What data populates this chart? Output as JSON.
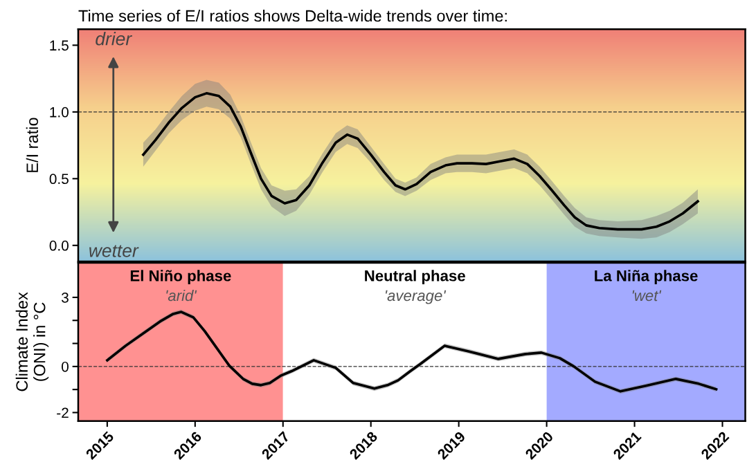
{
  "chart_data": [
    {
      "type": "line",
      "title": "Time series of E/I ratios shows Delta-wide trends over time:",
      "ylabel": "E/I ratio",
      "annotations": [
        "drier",
        "wetter"
      ],
      "series": [
        {
          "color": "#000000",
          "x": [
            2015.41,
            2015.55,
            2015.7,
            2015.85,
            2016.0,
            2016.13,
            2016.27,
            2016.4,
            2016.52,
            2016.63,
            2016.75,
            2016.87,
            2017.02,
            2017.15,
            2017.3,
            2017.45,
            2017.6,
            2017.73,
            2017.85,
            2018.0,
            2018.15,
            2018.28,
            2018.39,
            2018.52,
            2018.68,
            2018.85,
            2018.98,
            2019.15,
            2019.31,
            2019.47,
            2019.63,
            2019.78,
            2019.92,
            2020.05,
            2020.2,
            2020.32,
            2020.45,
            2020.6,
            2020.81,
            2021.08,
            2021.25,
            2021.4,
            2021.55,
            2021.72
          ],
          "values": [
            0.68,
            0.79,
            0.92,
            1.03,
            1.11,
            1.14,
            1.12,
            1.04,
            0.89,
            0.7,
            0.5,
            0.37,
            0.315,
            0.34,
            0.45,
            0.62,
            0.77,
            0.83,
            0.8,
            0.68,
            0.55,
            0.45,
            0.42,
            0.46,
            0.55,
            0.6,
            0.615,
            0.615,
            0.61,
            0.63,
            0.65,
            0.61,
            0.52,
            0.42,
            0.3,
            0.21,
            0.15,
            0.13,
            0.12,
            0.12,
            0.14,
            0.18,
            0.24,
            0.33
          ],
          "lower": [
            0.59,
            0.71,
            0.84,
            0.94,
            1.01,
            1.04,
            1.02,
            0.95,
            0.81,
            0.62,
            0.42,
            0.29,
            0.22,
            0.26,
            0.38,
            0.55,
            0.7,
            0.76,
            0.73,
            0.62,
            0.49,
            0.4,
            0.37,
            0.41,
            0.49,
            0.54,
            0.55,
            0.55,
            0.54,
            0.56,
            0.58,
            0.54,
            0.45,
            0.35,
            0.23,
            0.14,
            0.09,
            0.07,
            0.06,
            0.05,
            0.06,
            0.1,
            0.16,
            0.24
          ],
          "upper": [
            0.77,
            0.87,
            1.0,
            1.12,
            1.21,
            1.24,
            1.22,
            1.13,
            0.97,
            0.78,
            0.58,
            0.45,
            0.41,
            0.42,
            0.52,
            0.69,
            0.84,
            0.9,
            0.87,
            0.74,
            0.61,
            0.5,
            0.47,
            0.51,
            0.61,
            0.66,
            0.68,
            0.68,
            0.68,
            0.7,
            0.72,
            0.68,
            0.59,
            0.49,
            0.37,
            0.28,
            0.21,
            0.19,
            0.18,
            0.19,
            0.22,
            0.26,
            0.32,
            0.42
          ]
        }
      ],
      "xlim": [
        2014.67,
        2022.26
      ],
      "ylim": [
        -0.12,
        1.62
      ],
      "yticks": [
        {
          "value": 0,
          "label": "0.0"
        },
        {
          "value": 0.5,
          "label": "0.5"
        },
        {
          "value": 1,
          "label": "1.0"
        },
        {
          "value": 1.5,
          "label": "1.5"
        }
      ],
      "ref_lines": [
        {
          "axis": "y",
          "value": 1,
          "color": "#333333",
          "line_style": "dashed"
        }
      ],
      "tick_labels": "y",
      "marker": "none",
      "line_style": "solid"
    },
    {
      "type": "line",
      "ylabel": "Climate Index\n(ONI) in °C",
      "series": [
        {
          "color": "#000000",
          "x": [
            2015.0,
            2015.21,
            2015.41,
            2015.6,
            2015.75,
            2015.84,
            2015.98,
            2016.11,
            2016.25,
            2016.39,
            2016.55,
            2016.65,
            2016.75,
            2016.85,
            2016.98,
            2017.1,
            2017.35,
            2017.6,
            2017.8,
            2018.04,
            2018.19,
            2018.31,
            2018.45,
            2018.56,
            2018.84,
            2019.11,
            2019.45,
            2019.76,
            2019.94,
            2020.15,
            2020.31,
            2020.55,
            2020.84,
            2021.13,
            2021.47,
            2021.73,
            2021.93
          ],
          "values": [
            0.27,
            0.9,
            1.44,
            1.95,
            2.28,
            2.37,
            2.13,
            1.53,
            0.78,
            0.03,
            -0.55,
            -0.75,
            -0.81,
            -0.72,
            -0.39,
            -0.2,
            0.27,
            -0.06,
            -0.72,
            -0.96,
            -0.81,
            -0.6,
            -0.2,
            0.1,
            0.9,
            0.66,
            0.33,
            0.54,
            0.6,
            0.36,
            0.0,
            -0.66,
            -1.08,
            -0.84,
            -0.54,
            -0.75,
            -0.99
          ],
          "lower": [
            0.17,
            0.8,
            1.34,
            1.85,
            2.18,
            2.27,
            2.03,
            1.43,
            0.68,
            -0.07,
            -0.65,
            -0.85,
            -0.91,
            -0.82,
            -0.49,
            -0.3,
            0.17,
            -0.16,
            -0.82,
            -1.06,
            -0.91,
            -0.7,
            -0.3,
            0.0,
            0.8,
            0.56,
            0.23,
            0.44,
            0.5,
            0.26,
            -0.1,
            -0.76,
            -1.18,
            -0.94,
            -0.64,
            -0.85,
            -1.09
          ],
          "upper": [
            0.37,
            1.0,
            1.54,
            2.05,
            2.38,
            2.47,
            2.23,
            1.63,
            0.88,
            0.13,
            -0.45,
            -0.65,
            -0.71,
            -0.62,
            -0.29,
            -0.1,
            0.37,
            0.04,
            -0.62,
            -0.86,
            -0.71,
            -0.5,
            -0.1,
            0.2,
            1.0,
            0.76,
            0.43,
            0.64,
            0.7,
            0.46,
            0.1,
            -0.56,
            -0.98,
            -0.74,
            -0.44,
            -0.65,
            -0.89
          ]
        }
      ],
      "xlim": [
        2014.67,
        2022.26
      ],
      "ylim": [
        -2.37,
        4.5
      ],
      "xticks": [
        2015,
        2016,
        2017,
        2018,
        2019,
        2020,
        2021,
        2022
      ],
      "yticks": [
        {
          "value": -2,
          "label": "-2"
        },
        {
          "value": -1,
          "label": null
        },
        0,
        {
          "value": 1,
          "label": null
        },
        {
          "value": 2,
          "label": null
        },
        3
      ],
      "ref_lines": [
        {
          "axis": "y",
          "value": 0,
          "color": "#333333",
          "line_style": "dashed"
        }
      ],
      "bands": [
        {
          "axis": "x",
          "from": 2014.67,
          "to": 2017,
          "label": "El Niño phase\n'arid'",
          "color": "#ff9191"
        },
        {
          "axis": "x",
          "from": 2017,
          "to": 2020,
          "label": "Neutral phase\n'average'",
          "color": "#ffffff"
        },
        {
          "axis": "x",
          "from": 2020,
          "to": 2022.26,
          "label": "La Niña phase\n'wet'",
          "color": "#a3aaff"
        }
      ],
      "marker": "none",
      "line_style": "solid"
    }
  ]
}
